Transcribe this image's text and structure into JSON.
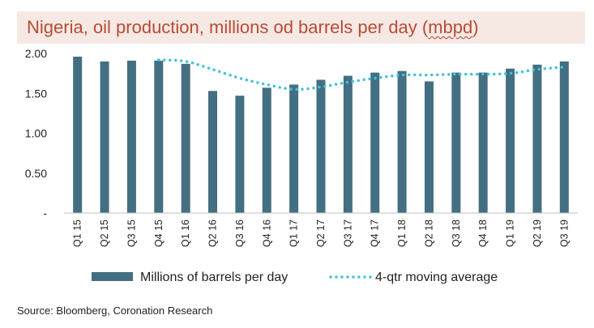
{
  "title_prefix": "Nigeria, oil production, millions od barrels per day (",
  "title_unit": "mbpd",
  "title_suffix": ")",
  "source": "Source: Bloomberg, Coronation Research",
  "colors": {
    "bar": "#436f82",
    "moving_average": "#40c4d3",
    "title_bg": "#f6e9e3",
    "title_text": "#b84b36"
  },
  "chart_data": {
    "type": "bar",
    "categories": [
      "Q1 15",
      "Q2 15",
      "Q3 15",
      "Q4 15",
      "Q1 16",
      "Q2 16",
      "Q3 16",
      "Q4 16",
      "Q1 17",
      "Q2 17",
      "Q3 17",
      "Q4 17",
      "Q1 18",
      "Q2 18",
      "Q3 18",
      "Q4 18",
      "Q1 19",
      "Q2 19",
      "Q3 19"
    ],
    "series": [
      {
        "name": "Millions of barrels per day",
        "kind": "bar",
        "values": [
          1.96,
          1.9,
          1.91,
          1.91,
          1.87,
          1.53,
          1.47,
          1.57,
          1.61,
          1.67,
          1.72,
          1.76,
          1.78,
          1.65,
          1.76,
          1.76,
          1.81,
          1.86,
          1.9
        ]
      },
      {
        "name": "4-qtr moving average",
        "kind": "line-dotted",
        "values": [
          null,
          null,
          null,
          1.92,
          1.9,
          1.8,
          1.69,
          1.61,
          1.55,
          1.58,
          1.64,
          1.69,
          1.73,
          1.73,
          1.74,
          1.74,
          1.75,
          1.8,
          1.83
        ]
      }
    ],
    "y_ticks": [
      "-",
      "0.50",
      "1.00",
      "1.50",
      "2.00"
    ],
    "ylim": [
      0,
      2.0
    ],
    "grid": false,
    "legend_position": "bottom"
  }
}
